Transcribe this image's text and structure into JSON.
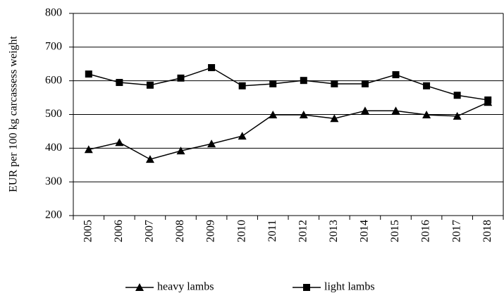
{
  "chart_data": {
    "type": "line",
    "y_label": "EUR per 100 kg carcassess weight",
    "categories": [
      "2005",
      "2006",
      "2007",
      "2008",
      "2009",
      "2010",
      "2011",
      "2012",
      "2013",
      "2014",
      "2015",
      "2016",
      "2017",
      "2018"
    ],
    "series": [
      {
        "name": "heavy lambs",
        "color": "#000000",
        "marker": "triangle",
        "values": [
          396,
          417,
          367,
          392,
          413,
          436,
          499,
          499,
          488,
          511,
          511,
          499,
          495,
          536
        ]
      },
      {
        "name": "light lambs",
        "color": "#000000",
        "marker": "square",
        "values": [
          620,
          595,
          587,
          608,
          639,
          585,
          591,
          601,
          591,
          591,
          618,
          585,
          557,
          543
        ]
      }
    ],
    "ylim": [
      200,
      800
    ],
    "yticks": [
      200,
      300,
      400,
      500,
      600,
      700,
      800
    ],
    "grid": true,
    "legend": "bottom"
  }
}
